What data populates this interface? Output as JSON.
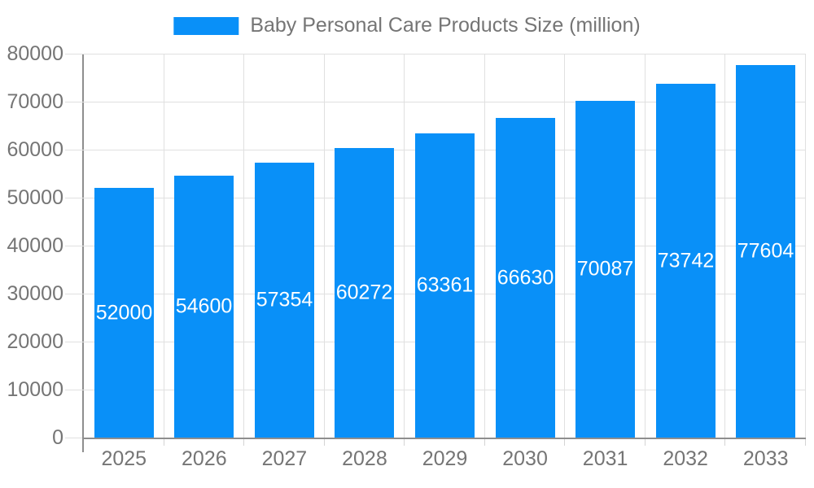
{
  "legend": {
    "label": "Baby Personal Care Products Size (million)",
    "position": "top"
  },
  "colors": {
    "bar": "#0990F8",
    "bar_label": "#ffffff",
    "axis_label": "#757575",
    "axis_line": "#8e8e8e",
    "grid": "#e0e0e0",
    "tick": "#d4d4d4",
    "background": "#ffffff"
  },
  "chart_data": {
    "type": "bar",
    "title": "Baby Personal Care Products Size (million)",
    "categories": [
      "2025",
      "2026",
      "2027",
      "2028",
      "2029",
      "2030",
      "2031",
      "2032",
      "2033"
    ],
    "values": [
      52000,
      54600,
      57354,
      60272,
      63361,
      66630,
      70087,
      73742,
      77604
    ],
    "series": [
      {
        "name": "Baby Personal Care Products Size (million)",
        "values": [
          52000,
          54600,
          57354,
          60272,
          63361,
          66630,
          70087,
          73742,
          77604
        ]
      }
    ],
    "xlabel": "",
    "ylabel": "",
    "ylim": [
      0,
      80000
    ],
    "yticks": [
      0,
      10000,
      20000,
      30000,
      40000,
      50000,
      60000,
      70000,
      80000
    ],
    "grid": true,
    "legend_position": "top",
    "bar_labels_visible": true,
    "bar_label_position": "middle-of-bar"
  }
}
